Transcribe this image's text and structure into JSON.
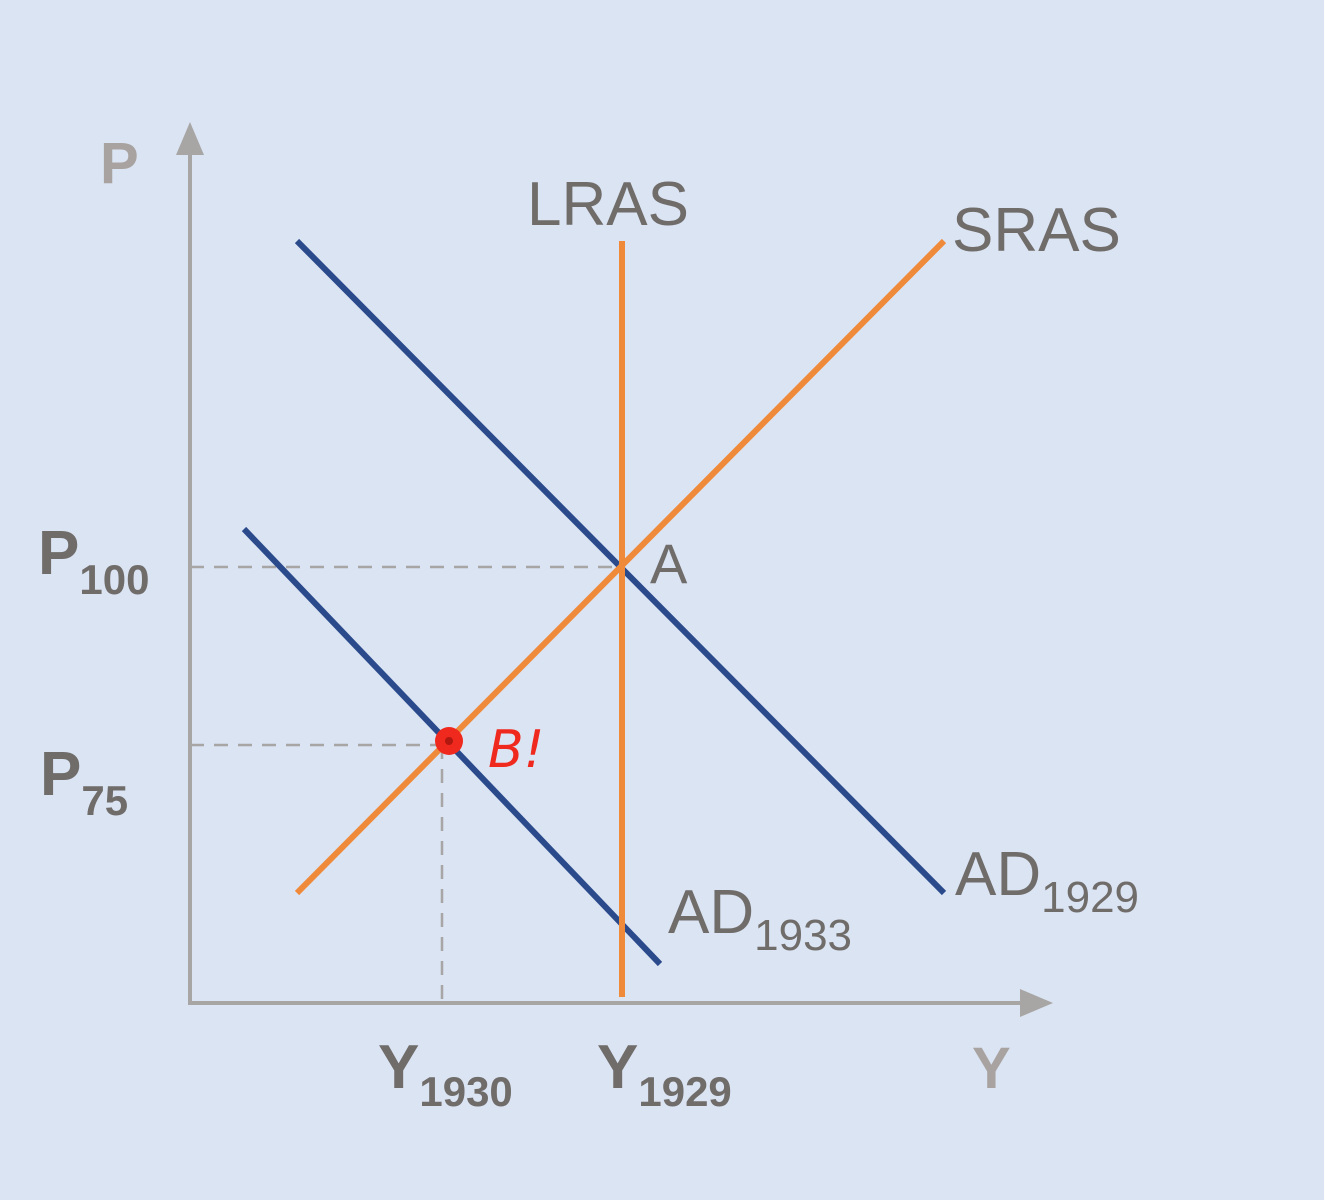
{
  "axes": {
    "y_label": "P",
    "x_label": "Y"
  },
  "curves": {
    "lras": "LRAS",
    "sras": "SRAS",
    "ad_1929": {
      "main": "AD",
      "sub": "1929"
    },
    "ad_1933": {
      "main": "AD",
      "sub": "1933"
    }
  },
  "price_levels": {
    "p100": {
      "main": "P",
      "sub": "100"
    },
    "p75": {
      "main": "P",
      "sub": "75"
    }
  },
  "output_levels": {
    "y1930": {
      "main": "Y",
      "sub": "1930"
    },
    "y1929": {
      "main": "Y",
      "sub": "1929"
    }
  },
  "points": {
    "a": "A",
    "b": "B!"
  },
  "colors": {
    "background": "#dbe4f3",
    "axis": "#a8a6a4",
    "label_gray": "#6f6c6a",
    "axis_letter": "#a8a3a0",
    "supply_orange": "#ef8a3a",
    "demand_blue": "#2a4a8c",
    "annotation_red": "#f0291e"
  }
}
